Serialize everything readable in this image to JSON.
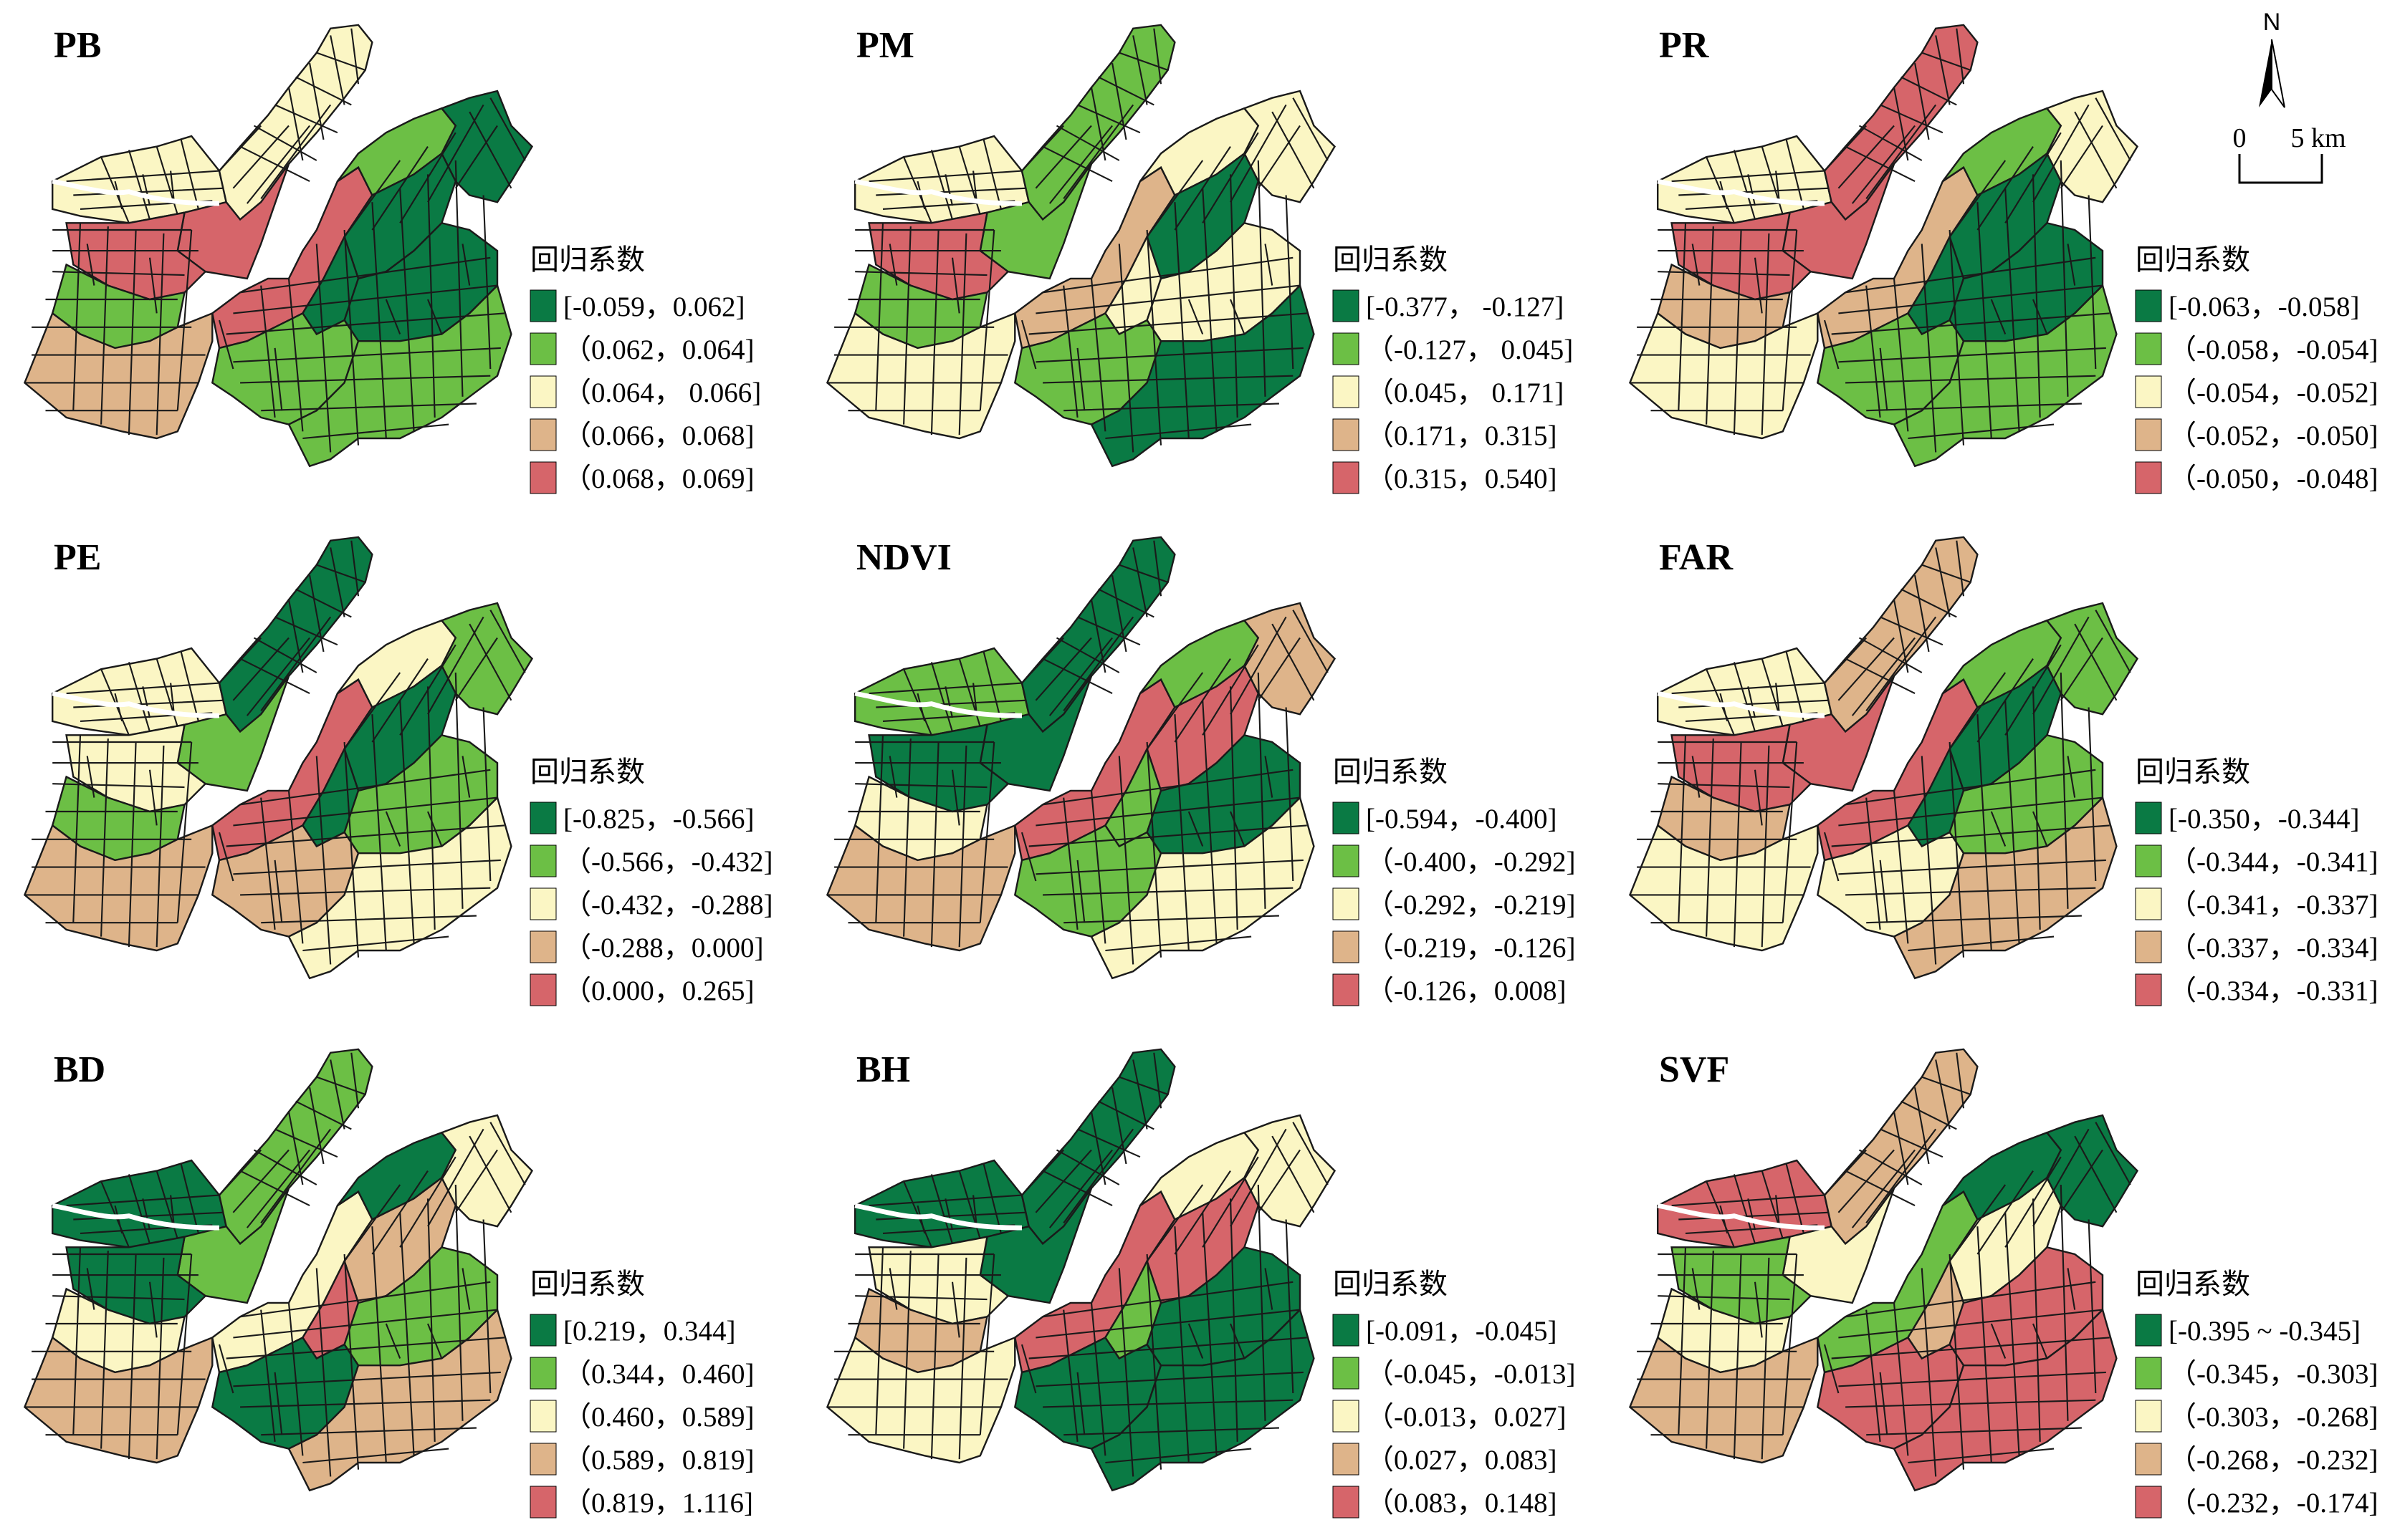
{
  "colors": {
    "class1": "#0a7a44",
    "class2": "#6cbf45",
    "class3": "#fbf6c4",
    "class4": "#deb48a",
    "class5": "#d6656a",
    "roads": "#1a1a1a",
    "river": "#ffffff"
  },
  "north_arrow": {
    "label": "N"
  },
  "scale_bar": {
    "start": "0",
    "end": "5 km"
  },
  "panels": [
    {
      "title": "PB",
      "legend_title": "回归系数",
      "classes": [
        "[-0.059，0.062]",
        "（0.062，0.064]",
        "（0.064， 0.066]",
        "（0.066，0.068]",
        "（0.068，0.069]"
      ]
    },
    {
      "title": "PM",
      "legend_title": "回归系数",
      "classes": [
        "[-0.377， -0.127]",
        "（-0.127， 0.045]",
        "（0.045， 0.171]",
        "（0.171，0.315]",
        "（0.315，0.540]"
      ]
    },
    {
      "title": "PR",
      "legend_title": "回归系数",
      "classes": [
        "[-0.063，-0.058]",
        "（-0.058，-0.054]",
        "（-0.054，-0.052]",
        "（-0.052，-0.050]",
        "（-0.050，-0.048]"
      ]
    },
    {
      "title": "PE",
      "legend_title": "回归系数",
      "classes": [
        "[-0.825，-0.566]",
        "（-0.566，-0.432]",
        "（-0.432，-0.288]",
        "（-0.288，0.000]",
        "（0.000，0.265]"
      ]
    },
    {
      "title": "NDVI",
      "legend_title": "回归系数",
      "classes": [
        "[-0.594，-0.400]",
        "（-0.400，-0.292]",
        "（-0.292，-0.219]",
        "（-0.219，-0.126]",
        "（-0.126，0.008]"
      ]
    },
    {
      "title": "FAR",
      "legend_title": "回归系数",
      "classes": [
        "[-0.350，-0.344]",
        "（-0.344，-0.341]",
        "（-0.341，-0.337]",
        "（-0.337，-0.334]",
        "（-0.334，-0.331]"
      ]
    },
    {
      "title": "BD",
      "legend_title": "回归系数",
      "classes": [
        "[0.219，0.344]",
        "（0.344，0.460]",
        "（0.460，0.589]",
        "（0.589，0.819]",
        "（0.819，1.116]"
      ]
    },
    {
      "title": "BH",
      "legend_title": "回归系数",
      "classes": [
        "[-0.091，-0.045]",
        "（-0.045，-0.013]",
        "（-0.013，0.027]",
        "（0.027，0.083]",
        "（0.083，0.148]"
      ]
    },
    {
      "title": "SVF",
      "legend_title": "回归系数",
      "classes": [
        "[-0.395 ~ -0.345]",
        "（-0.345，-0.303]",
        "（-0.303，-0.268]",
        "（-0.268，-0.232]",
        "（-0.232，-0.174]"
      ]
    }
  ],
  "zone_classes": [
    [
      3,
      3,
      5,
      5,
      2,
      4,
      5,
      2,
      1,
      1,
      1,
      1,
      2,
      2
    ],
    [
      3,
      2,
      2,
      5,
      2,
      3,
      4,
      3,
      3,
      1,
      3,
      3,
      2,
      1
    ],
    [
      3,
      5,
      5,
      5,
      4,
      3,
      4,
      2,
      3,
      1,
      1,
      1,
      2,
      2
    ],
    [
      3,
      1,
      2,
      3,
      2,
      4,
      5,
      3,
      2,
      1,
      1,
      2,
      4,
      3
    ],
    [
      2,
      1,
      1,
      1,
      3,
      4,
      5,
      2,
      4,
      5,
      2,
      1,
      2,
      3
    ],
    [
      3,
      4,
      5,
      5,
      4,
      3,
      5,
      2,
      2,
      1,
      1,
      2,
      3,
      4
    ],
    [
      1,
      2,
      2,
      1,
      3,
      4,
      3,
      1,
      3,
      4,
      5,
      2,
      1,
      4
    ],
    [
      1,
      1,
      1,
      3,
      4,
      3,
      5,
      3,
      3,
      5,
      2,
      1,
      1,
      1
    ],
    [
      5,
      4,
      3,
      2,
      3,
      4,
      2,
      1,
      1,
      3,
      4,
      5,
      5,
      5
    ]
  ]
}
